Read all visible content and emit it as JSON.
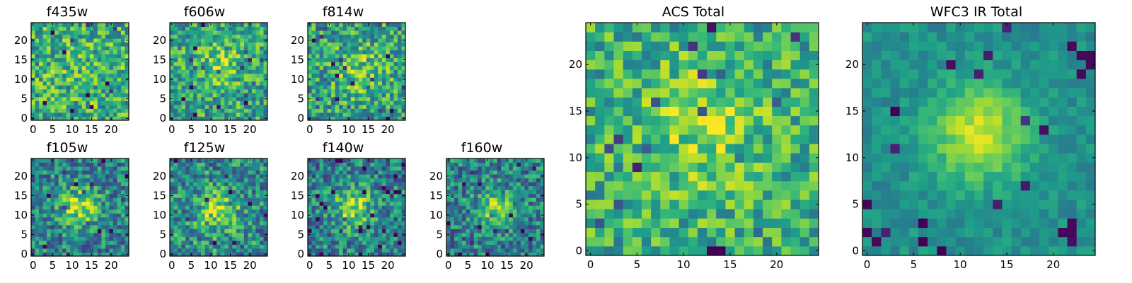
{
  "chart_data": [
    {
      "type": "heatmap",
      "title": "f435w",
      "xlim": [
        0,
        25
      ],
      "ylim": [
        0,
        25
      ],
      "xticks": [
        0,
        5,
        10,
        15,
        20
      ],
      "yticks": [
        0,
        5,
        10,
        15,
        20
      ],
      "grid_size": 25,
      "colormap": "viridis",
      "grid": false,
      "source_center": [
        12,
        12
      ],
      "source_sigma": 6,
      "source_amplitude": 0.05,
      "noise_level": 0.36,
      "baseline": 0.62,
      "seed": 11
    },
    {
      "type": "heatmap",
      "title": "f606w",
      "xlim": [
        0,
        25
      ],
      "ylim": [
        0,
        25
      ],
      "xticks": [
        0,
        5,
        10,
        15,
        20
      ],
      "yticks": [
        0,
        5,
        10,
        15,
        20
      ],
      "grid_size": 25,
      "colormap": "viridis",
      "grid": false,
      "source_center": [
        12,
        14
      ],
      "source_sigma": 4.5,
      "source_amplitude": 0.2,
      "noise_level": 0.34,
      "baseline": 0.58,
      "seed": 23
    },
    {
      "type": "heatmap",
      "title": "f814w",
      "xlim": [
        0,
        25
      ],
      "ylim": [
        0,
        25
      ],
      "xticks": [
        0,
        5,
        10,
        15,
        20
      ],
      "yticks": [
        0,
        5,
        10,
        15,
        20
      ],
      "grid_size": 25,
      "colormap": "viridis",
      "grid": false,
      "source_center": [
        13,
        12
      ],
      "source_sigma": 4.5,
      "source_amplitude": 0.22,
      "noise_level": 0.36,
      "baseline": 0.56,
      "seed": 37
    },
    {
      "type": "heatmap",
      "title": "f105w",
      "xlim": [
        0,
        25
      ],
      "ylim": [
        0,
        25
      ],
      "xticks": [
        0,
        5,
        10,
        15,
        20
      ],
      "yticks": [
        0,
        5,
        10,
        15,
        20
      ],
      "grid_size": 25,
      "colormap": "viridis",
      "grid": false,
      "source_center": [
        12,
        12
      ],
      "source_sigma": 3.5,
      "source_amplitude": 0.42,
      "noise_level": 0.34,
      "baseline": 0.44,
      "seed": 41
    },
    {
      "type": "heatmap",
      "title": "f125w",
      "xlim": [
        0,
        25
      ],
      "ylim": [
        0,
        25
      ],
      "xticks": [
        0,
        5,
        10,
        15,
        20
      ],
      "yticks": [
        0,
        5,
        10,
        15,
        20
      ],
      "grid_size": 25,
      "colormap": "viridis",
      "grid": false,
      "source_center": [
        12,
        11
      ],
      "source_sigma": 3.5,
      "source_amplitude": 0.4,
      "noise_level": 0.36,
      "baseline": 0.48,
      "seed": 53
    },
    {
      "type": "heatmap",
      "title": "f140w",
      "xlim": [
        0,
        25
      ],
      "ylim": [
        0,
        25
      ],
      "xticks": [
        0,
        5,
        10,
        15,
        20
      ],
      "yticks": [
        0,
        5,
        10,
        15,
        20
      ],
      "grid_size": 25,
      "colormap": "viridis",
      "grid": false,
      "source_center": [
        11,
        12
      ],
      "source_sigma": 3.5,
      "source_amplitude": 0.42,
      "noise_level": 0.34,
      "baseline": 0.44,
      "seed": 67
    },
    {
      "type": "heatmap",
      "title": "f160w",
      "xlim": [
        0,
        25
      ],
      "ylim": [
        0,
        25
      ],
      "xticks": [
        0,
        5,
        10,
        15,
        20
      ],
      "yticks": [
        0,
        5,
        10,
        15,
        20
      ],
      "grid_size": 25,
      "colormap": "viridis",
      "grid": false,
      "source_center": [
        12,
        12
      ],
      "source_sigma": 3,
      "source_amplitude": 0.42,
      "noise_level": 0.34,
      "baseline": 0.44,
      "seed": 79
    },
    {
      "type": "heatmap",
      "title": "ACS Total",
      "xlim": [
        0,
        25
      ],
      "ylim": [
        0,
        25
      ],
      "xticks": [
        0,
        5,
        10,
        15,
        20
      ],
      "yticks": [
        0,
        5,
        10,
        15,
        20
      ],
      "grid_size": 25,
      "colormap": "viridis",
      "grid": false,
      "source_center": [
        12,
        13
      ],
      "source_sigma": 5,
      "source_amplitude": 0.2,
      "noise_level": 0.3,
      "baseline": 0.62,
      "seed": 97
    },
    {
      "type": "heatmap",
      "title": "WFC3 IR Total",
      "xlim": [
        0,
        25
      ],
      "ylim": [
        0,
        25
      ],
      "xticks": [
        0,
        5,
        10,
        15,
        20
      ],
      "yticks": [
        0,
        5,
        10,
        15,
        20
      ],
      "grid_size": 25,
      "colormap": "viridis",
      "grid": false,
      "source_center": [
        12,
        12.5
      ],
      "source_sigma": 3.5,
      "source_amplitude": 0.45,
      "noise_level": 0.12,
      "baseline": 0.5,
      "seed": 113,
      "dark_spots": [
        [
          24,
          20
        ],
        [
          24,
          21
        ],
        [
          23,
          21
        ],
        [
          21,
          2
        ],
        [
          22,
          3
        ],
        [
          22,
          2
        ],
        [
          0,
          2
        ],
        [
          1,
          1
        ],
        [
          22,
          22
        ],
        [
          23,
          19
        ]
      ]
    }
  ]
}
